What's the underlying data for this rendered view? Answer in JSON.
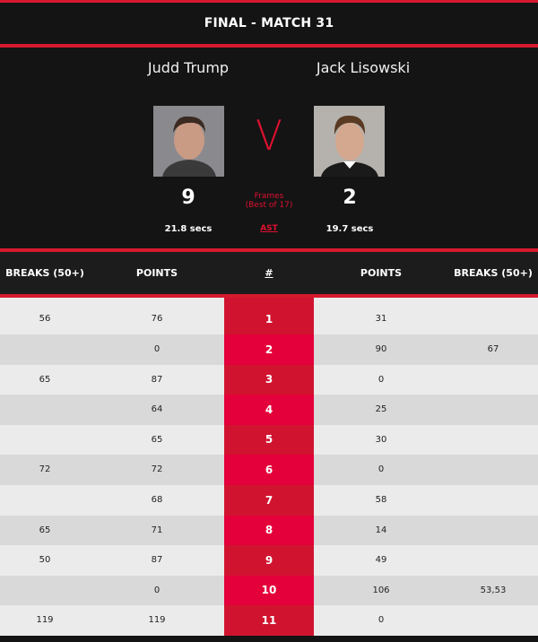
{
  "title": "FINAL - MATCH 31",
  "player1": {
    "name": "Judd Trump",
    "frames": "9",
    "avg_shot_time": "21.8 secs"
  },
  "player2": {
    "name": "Jack Lisowski",
    "frames": "2",
    "avg_shot_time": "19.7 secs"
  },
  "versus": "V",
  "frames_label": "Frames",
  "best_of": "(Best of 17)",
  "ast_label": "AST",
  "columns": [
    "BREAKS (50+)",
    "POINTS",
    "#",
    "POINTS",
    "BREAKS (50+)"
  ],
  "colors": {
    "accent": "#d7192e",
    "frame_col_a": "#d0142f",
    "frame_col_b": "#e4003a"
  },
  "rows": [
    {
      "p1_breaks": "56",
      "p1_points": "76",
      "frame": "1",
      "p2_points": "31",
      "p2_breaks": ""
    },
    {
      "p1_breaks": "",
      "p1_points": "0",
      "frame": "2",
      "p2_points": "90",
      "p2_breaks": "67"
    },
    {
      "p1_breaks": "65",
      "p1_points": "87",
      "frame": "3",
      "p2_points": "0",
      "p2_breaks": ""
    },
    {
      "p1_breaks": "",
      "p1_points": "64",
      "frame": "4",
      "p2_points": "25",
      "p2_breaks": ""
    },
    {
      "p1_breaks": "",
      "p1_points": "65",
      "frame": "5",
      "p2_points": "30",
      "p2_breaks": ""
    },
    {
      "p1_breaks": "72",
      "p1_points": "72",
      "frame": "6",
      "p2_points": "0",
      "p2_breaks": ""
    },
    {
      "p1_breaks": "",
      "p1_points": "68",
      "frame": "7",
      "p2_points": "58",
      "p2_breaks": ""
    },
    {
      "p1_breaks": "65",
      "p1_points": "71",
      "frame": "8",
      "p2_points": "14",
      "p2_breaks": ""
    },
    {
      "p1_breaks": "50",
      "p1_points": "87",
      "frame": "9",
      "p2_points": "49",
      "p2_breaks": ""
    },
    {
      "p1_breaks": "",
      "p1_points": "0",
      "frame": "10",
      "p2_points": "106",
      "p2_breaks": "53,53"
    },
    {
      "p1_breaks": "119",
      "p1_points": "119",
      "frame": "11",
      "p2_points": "0",
      "p2_breaks": ""
    }
  ]
}
